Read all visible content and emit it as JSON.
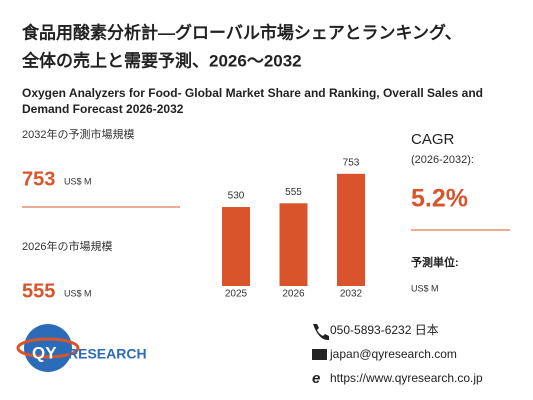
{
  "chart_data": {
    "type": "bar",
    "title": [
      "食品用酸素分析計—グローバル市場シェアとランキング、",
      "全体の売上と需要予測、2026～2032"
    ],
    "subtitle": [
      "Oxygen Analyzers for Food- Global Market Share and Ranking, Overall Sales and",
      "Demand Forecast 2026-2032"
    ],
    "categories": [
      "2025",
      "2026",
      "2032"
    ],
    "values": [
      530,
      555,
      753
    ],
    "color": "#d9542b"
  },
  "stats": [
    {
      "label": "2032年の予測市場規模",
      "value": "753",
      "unit": "US$ M"
    },
    {
      "label": "2026年の市場規模",
      "value": "555",
      "unit": "US$ M"
    }
  ],
  "cagr": {
    "label": "CAGR",
    "period": "(2026-2032):",
    "value": "5.2%"
  },
  "forecast_unit": {
    "label": "予測単位:",
    "value": "US$ M"
  },
  "contact": {
    "phone": "050-5893-6232 日本",
    "email": "japan@qyresearch.com",
    "web": "https://www.qyresearch.co.jp"
  },
  "logo": {
    "mark": "QY",
    "text": "RESEARCH"
  }
}
